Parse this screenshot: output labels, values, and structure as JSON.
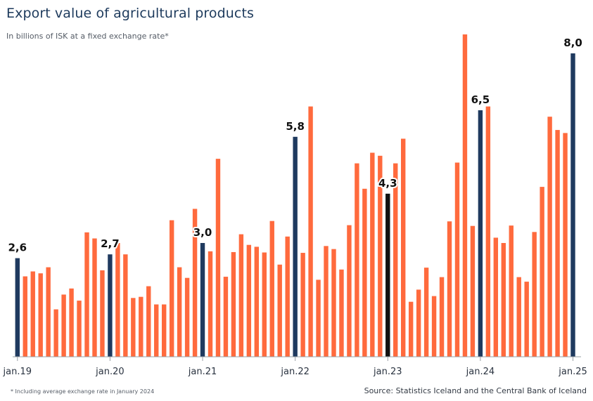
{
  "chart_data": {
    "type": "bar",
    "title": "Export value of agricultural products",
    "subtitle": "In billions of ISK at a fixed exchange rate*",
    "xlabel": "",
    "ylabel": "",
    "ylim": [
      0,
      8.5
    ],
    "grid": false,
    "tick_labels": [
      "jan.19",
      "jan.20",
      "jan.21",
      "jan.22",
      "jan.23",
      "jan.24",
      "jan.25"
    ],
    "tick_indices": [
      0,
      12,
      24,
      36,
      48,
      60,
      72
    ],
    "values": [
      2.6,
      2.12,
      2.25,
      2.2,
      2.36,
      1.25,
      1.64,
      1.8,
      1.48,
      3.28,
      3.12,
      2.28,
      2.7,
      3.0,
      2.7,
      1.55,
      1.58,
      1.86,
      1.38,
      1.38,
      3.6,
      2.36,
      2.08,
      3.9,
      3.0,
      2.78,
      5.22,
      2.11,
      2.76,
      3.23,
      2.95,
      2.9,
      2.75,
      3.58,
      2.43,
      3.17,
      5.8,
      2.74,
      6.6,
      2.03,
      2.92,
      2.84,
      2.3,
      3.47,
      5.1,
      4.43,
      5.38,
      5.3,
      4.3,
      5.1,
      5.75,
      1.45,
      1.77,
      2.35,
      1.6,
      2.1,
      3.57,
      5.12,
      8.5,
      3.45,
      6.5,
      6.6,
      3.14,
      3.0,
      3.46,
      2.1,
      1.98,
      3.29,
      4.48,
      6.33,
      5.98,
      5.9,
      8.0
    ],
    "highlight_indices": [
      0,
      12,
      24,
      36,
      48,
      60,
      72
    ],
    "data_labels": [
      {
        "index": 0,
        "text": "2,6"
      },
      {
        "index": 12,
        "text": "2,7"
      },
      {
        "index": 24,
        "text": "3,0"
      },
      {
        "index": 36,
        "text": "5,8"
      },
      {
        "index": 48,
        "text": "4,3"
      },
      {
        "index": 60,
        "text": "6,5"
      },
      {
        "index": 72,
        "text": "8,0"
      }
    ],
    "colors": {
      "regular": "#ff6a3d",
      "highlight": "#1f3a5f",
      "highlight_alt": "#111111"
    }
  },
  "footnote": "* Including average exchange rate in January 2024",
  "source": "Source: Statistics Iceland and the Central Bank of Iceland"
}
